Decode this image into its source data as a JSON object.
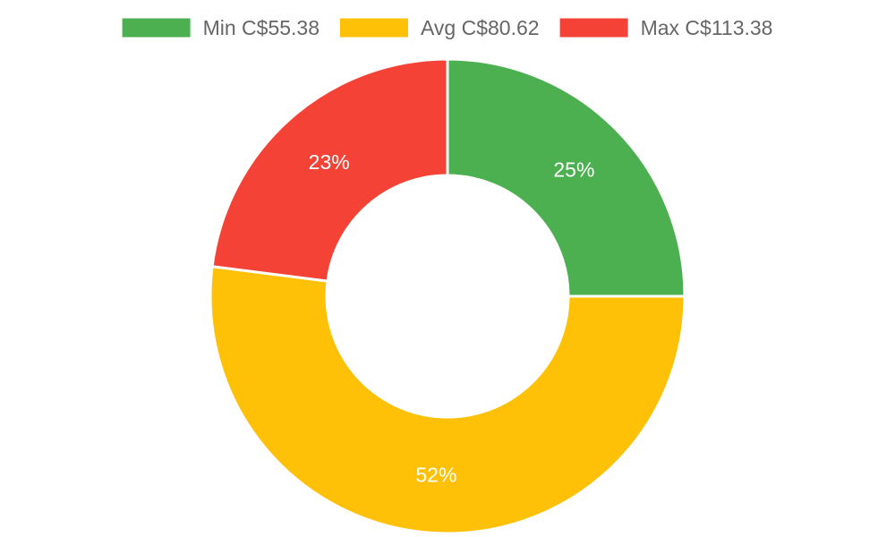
{
  "chart_data": {
    "type": "pie",
    "variant": "doughnut",
    "legend_position": "top",
    "slices": [
      {
        "name": "Min C$55.38",
        "value": 25,
        "label": "25%",
        "color": "#4caf50"
      },
      {
        "name": "Avg C$80.62",
        "value": 52,
        "label": "52%",
        "color": "#ffc107"
      },
      {
        "name": "Max C$113.38",
        "value": 23,
        "label": "23%",
        "color": "#f44336"
      }
    ]
  }
}
